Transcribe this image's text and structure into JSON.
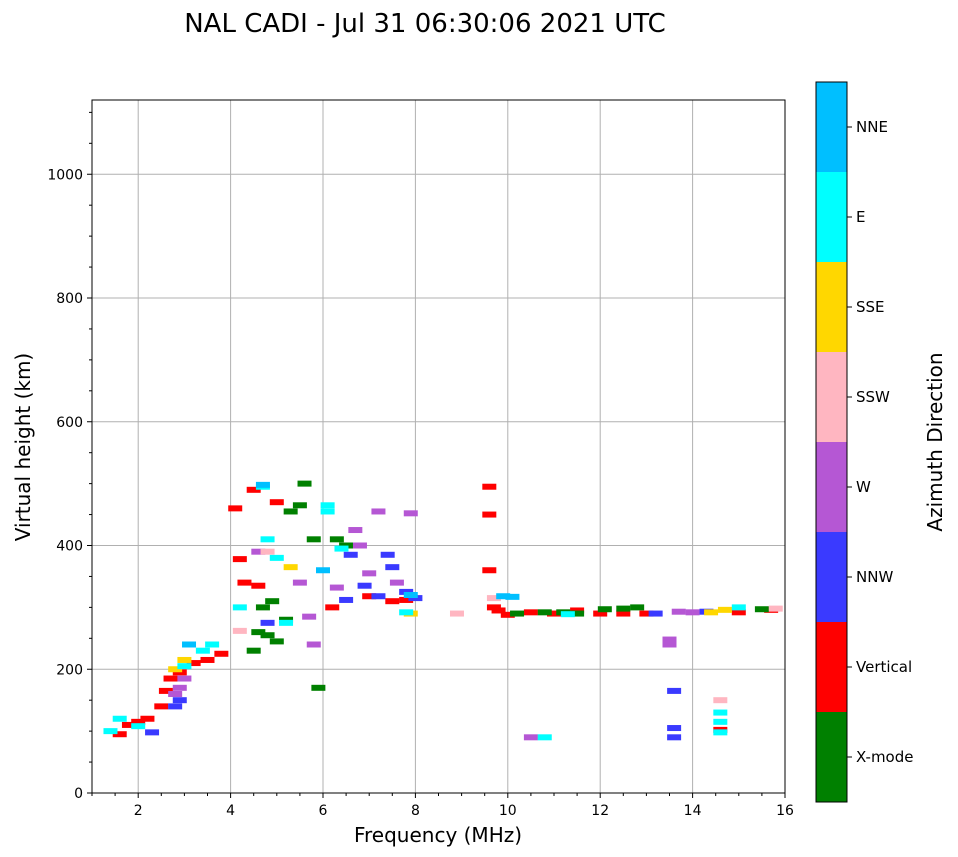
{
  "chart_data": {
    "type": "scatter",
    "title": "NAL CADI - Jul 31 06:30:06 2021 UTC",
    "xlabel": "Frequency (MHz)",
    "ylabel": "Virtual height (km)",
    "xlim": [
      1,
      16
    ],
    "ylim": [
      0,
      1120
    ],
    "xticks": [
      2,
      4,
      6,
      8,
      10,
      12,
      14,
      16
    ],
    "yticks": [
      0,
      200,
      400,
      600,
      800,
      1000
    ],
    "grid": true,
    "colorbar": {
      "label": "Azimuth Direction",
      "categories": [
        {
          "name": "X-mode",
          "color": "#008000"
        },
        {
          "name": "Vertical",
          "color": "#ff0000"
        },
        {
          "name": "NNW",
          "color": "#3a3aff"
        },
        {
          "name": "W",
          "color": "#b557d4"
        },
        {
          "name": "SSW",
          "color": "#ffb6c1"
        },
        {
          "name": "SSE",
          "color": "#ffd700"
        },
        {
          "name": "E",
          "color": "#00ffff"
        },
        {
          "name": "NNE",
          "color": "#00bfff"
        }
      ]
    },
    "series": [
      {
        "name": "Vertical",
        "color": "#ff0000",
        "points": [
          [
            1.6,
            95
          ],
          [
            1.8,
            110
          ],
          [
            2.0,
            115
          ],
          [
            2.2,
            120
          ],
          [
            2.5,
            140
          ],
          [
            2.6,
            165
          ],
          [
            2.7,
            185
          ],
          [
            2.9,
            195
          ],
          [
            3.2,
            210
          ],
          [
            3.5,
            215
          ],
          [
            3.8,
            225
          ],
          [
            4.1,
            460
          ],
          [
            4.2,
            378
          ],
          [
            4.3,
            340
          ],
          [
            4.5,
            490
          ],
          [
            4.6,
            335
          ],
          [
            5.0,
            470
          ],
          [
            6.2,
            300
          ],
          [
            7.0,
            318
          ],
          [
            7.5,
            310
          ],
          [
            7.8,
            312
          ],
          [
            9.6,
            495
          ],
          [
            9.6,
            450
          ],
          [
            9.6,
            360
          ],
          [
            9.7,
            300
          ],
          [
            9.8,
            295
          ],
          [
            10.0,
            288
          ],
          [
            10.5,
            292
          ],
          [
            11.0,
            290
          ],
          [
            11.5,
            295
          ],
          [
            12.0,
            290
          ],
          [
            12.5,
            290
          ],
          [
            13.0,
            290
          ],
          [
            14.6,
            102
          ],
          [
            15.0,
            292
          ],
          [
            15.7,
            296
          ]
        ]
      },
      {
        "name": "X-mode",
        "color": "#008000",
        "points": [
          [
            4.5,
            230
          ],
          [
            4.6,
            260
          ],
          [
            4.7,
            300
          ],
          [
            4.8,
            255
          ],
          [
            4.9,
            310
          ],
          [
            5.0,
            245
          ],
          [
            5.2,
            280
          ],
          [
            5.3,
            455
          ],
          [
            5.5,
            465
          ],
          [
            5.6,
            500
          ],
          [
            5.8,
            410
          ],
          [
            5.9,
            170
          ],
          [
            6.3,
            410
          ],
          [
            6.5,
            400
          ],
          [
            10.2,
            290
          ],
          [
            10.8,
            292
          ],
          [
            11.2,
            292
          ],
          [
            11.5,
            290
          ],
          [
            12.1,
            297
          ],
          [
            12.5,
            298
          ],
          [
            12.8,
            300
          ],
          [
            15.5,
            297
          ]
        ]
      },
      {
        "name": "NNW",
        "color": "#3a3aff",
        "points": [
          [
            2.3,
            98
          ],
          [
            2.8,
            140
          ],
          [
            2.9,
            150
          ],
          [
            4.8,
            275
          ],
          [
            6.5,
            312
          ],
          [
            6.6,
            385
          ],
          [
            6.9,
            335
          ],
          [
            7.2,
            318
          ],
          [
            7.4,
            385
          ],
          [
            7.5,
            365
          ],
          [
            7.8,
            325
          ],
          [
            8.0,
            315
          ],
          [
            13.2,
            290
          ],
          [
            13.6,
            165
          ],
          [
            13.6,
            105
          ],
          [
            13.6,
            90
          ],
          [
            14.3,
            293
          ]
        ]
      },
      {
        "name": "W",
        "color": "#b557d4",
        "points": [
          [
            2.8,
            160
          ],
          [
            2.9,
            170
          ],
          [
            3.0,
            185
          ],
          [
            4.6,
            390
          ],
          [
            5.5,
            340
          ],
          [
            5.7,
            285
          ],
          [
            5.8,
            240
          ],
          [
            6.3,
            332
          ],
          [
            6.7,
            425
          ],
          [
            6.8,
            400
          ],
          [
            7.0,
            355
          ],
          [
            7.2,
            455
          ],
          [
            7.6,
            340
          ],
          [
            7.9,
            452
          ],
          [
            10.5,
            90
          ],
          [
            13.5,
            248
          ],
          [
            13.5,
            240
          ],
          [
            13.7,
            293
          ],
          [
            14.0,
            292
          ]
        ]
      },
      {
        "name": "SSW",
        "color": "#ffb6c1",
        "points": [
          [
            4.2,
            262
          ],
          [
            4.8,
            390
          ],
          [
            8.9,
            290
          ],
          [
            9.7,
            315
          ],
          [
            14.6,
            150
          ],
          [
            15.8,
            298
          ]
        ]
      },
      {
        "name": "SSE",
        "color": "#ffd700",
        "points": [
          [
            2.8,
            200
          ],
          [
            3.0,
            215
          ],
          [
            5.3,
            365
          ],
          [
            7.9,
            290
          ],
          [
            14.4,
            292
          ],
          [
            14.7,
            296
          ]
        ]
      },
      {
        "name": "E",
        "color": "#00ffff",
        "points": [
          [
            1.4,
            100
          ],
          [
            1.6,
            120
          ],
          [
            2.0,
            108
          ],
          [
            3.0,
            205
          ],
          [
            3.4,
            230
          ],
          [
            3.6,
            240
          ],
          [
            4.2,
            300
          ],
          [
            4.7,
            495
          ],
          [
            4.8,
            410
          ],
          [
            5.0,
            380
          ],
          [
            5.2,
            275
          ],
          [
            6.1,
            465
          ],
          [
            6.1,
            455
          ],
          [
            6.4,
            395
          ],
          [
            7.8,
            292
          ],
          [
            10.8,
            90
          ],
          [
            11.3,
            289
          ],
          [
            14.6,
            130
          ],
          [
            14.6,
            115
          ],
          [
            14.6,
            98
          ],
          [
            15.0,
            300
          ]
        ]
      },
      {
        "name": "NNE",
        "color": "#00bfff",
        "points": [
          [
            3.1,
            240
          ],
          [
            4.7,
            498
          ],
          [
            6.0,
            360
          ],
          [
            7.9,
            320
          ],
          [
            9.9,
            318
          ],
          [
            10.1,
            317
          ]
        ]
      }
    ]
  }
}
